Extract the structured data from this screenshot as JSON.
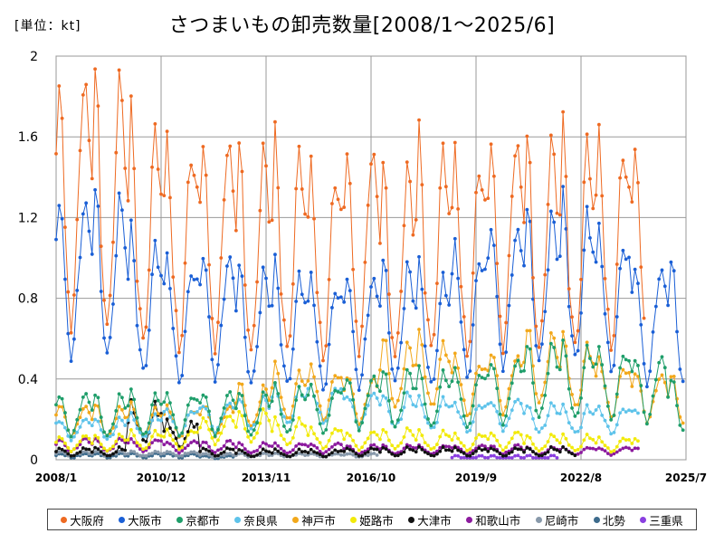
{
  "chart_data": {
    "type": "line",
    "title": "さつまいもの卸売数量[2008/1～2025/6]",
    "unit_label": "[単位：kt]",
    "ylim": [
      0,
      2
    ],
    "y_ticks": [
      "0",
      "0.4",
      "0.8",
      "1.2",
      "1.6",
      "2"
    ],
    "x_ticks": [
      "2008/1",
      "2010/12",
      "2013/11",
      "2016/10",
      "2019/9",
      "2022/8",
      "2025/7"
    ],
    "grid": true,
    "legend_position": "bottom",
    "series": [
      {
        "name": "大阪府",
        "color": "#ee6a22",
        "start": "2008/1",
        "end": "2024/5",
        "profile": [
          1.45,
          1.9,
          1.62,
          1.05,
          0.82,
          0.64,
          0.76,
          1.1,
          1.55,
          1.8,
          1.7,
          1.5
        ],
        "peaks": [
          1.97,
          1.94,
          1.7,
          1.62,
          1.65,
          1.58,
          1.58,
          1.49,
          1.61,
          1.49,
          1.59,
          1.55,
          1.66,
          1.63
        ]
      },
      {
        "name": "大阪市",
        "color": "#1a5fd6",
        "start": "2008/1",
        "end": "2025/6",
        "profile": [
          1.05,
          1.3,
          1.15,
          0.82,
          0.62,
          0.5,
          0.56,
          0.78,
          1.02,
          1.22,
          1.17,
          1.08
        ],
        "peaks": [
          1.34,
          1.34,
          1.12,
          1.02,
          1.06,
          0.97,
          0.96,
          0.92,
          0.95,
          1.0,
          0.95,
          1.08,
          1.21,
          1.26,
          1.28,
          1.15,
          1.0,
          1.0
        ]
      },
      {
        "name": "京都市",
        "color": "#1e9e6a",
        "start": "2008/1",
        "end": "2025/6",
        "profile": [
          0.27,
          0.33,
          0.3,
          0.22,
          0.15,
          0.12,
          0.14,
          0.19,
          0.26,
          0.32,
          0.31,
          0.28
        ],
        "peaks": [
          0.33,
          0.32,
          0.33,
          0.33,
          0.34,
          0.33,
          0.36,
          0.37,
          0.42,
          0.44,
          0.44,
          0.45,
          0.5,
          0.57,
          0.56,
          0.55,
          0.52,
          0.4
        ]
      },
      {
        "name": "奈良県",
        "color": "#5ec3ea",
        "start": "2008/1",
        "end": "2024/3",
        "profile": [
          0.18,
          0.2,
          0.18,
          0.15,
          0.12,
          0.1,
          0.11,
          0.13,
          0.17,
          0.2,
          0.19,
          0.18
        ],
        "peaks": [
          0.2,
          0.2,
          0.22,
          0.25,
          0.28,
          0.3,
          0.35,
          0.37,
          0.33,
          0.32,
          0.3,
          0.28,
          0.3,
          0.27,
          0.26,
          0.26,
          0.26
        ]
      },
      {
        "name": "神戸市",
        "color": "#f2a81b",
        "start": "2008/1",
        "end": "2025/6",
        "profile": [
          0.22,
          0.28,
          0.26,
          0.2,
          0.15,
          0.12,
          0.13,
          0.17,
          0.22,
          0.26,
          0.25,
          0.23
        ],
        "peaks": [
          0.28,
          0.27,
          0.27,
          0.27,
          0.28,
          0.38,
          0.46,
          0.47,
          0.43,
          0.6,
          0.61,
          0.52,
          0.55,
          0.65,
          0.6,
          0.5,
          0.45,
          0.42
        ]
      },
      {
        "name": "姫路市",
        "color": "#f2ea0a",
        "start": "2008/1",
        "end": "2024/3",
        "profile": [
          0.1,
          0.14,
          0.12,
          0.09,
          0.07,
          0.05,
          0.06,
          0.08,
          0.11,
          0.14,
          0.13,
          0.12
        ],
        "peaks": [
          0.12,
          0.12,
          0.14,
          0.15,
          0.22,
          0.24,
          0.2,
          0.16,
          0.14,
          0.15,
          0.14,
          0.13,
          0.14,
          0.12,
          0.12,
          0.11,
          0.11
        ]
      },
      {
        "name": "大津市",
        "color": "#111111",
        "start": "2008/1",
        "end": "2022/6",
        "profile": [
          0.04,
          0.06,
          0.05,
          0.04,
          0.03,
          0.02,
          0.02,
          0.03,
          0.04,
          0.06,
          0.05,
          0.05
        ],
        "peaks": [
          0.06,
          0.06,
          0.28,
          0.2,
          0.06,
          0.05,
          0.05,
          0.05,
          0.06,
          0.06,
          0.06,
          0.06,
          0.06,
          0.06,
          0.06
        ]
      },
      {
        "name": "和歌山市",
        "color": "#8c1a9e",
        "start": "2008/1",
        "end": "2024/3",
        "profile": [
          0.08,
          0.1,
          0.09,
          0.07,
          0.05,
          0.04,
          0.05,
          0.06,
          0.08,
          0.1,
          0.1,
          0.09
        ],
        "peaks": [
          0.1,
          0.1,
          0.1,
          0.09,
          0.09,
          0.08,
          0.08,
          0.08,
          0.07,
          0.07,
          0.07,
          0.07,
          0.07,
          0.06,
          0.06,
          0.06,
          0.06
        ]
      },
      {
        "name": "尼崎市",
        "color": "#8899aa",
        "start": "2008/1",
        "end": "2016/12",
        "profile": [
          0.03,
          0.04,
          0.04,
          0.03,
          0.02,
          0.02,
          0.02,
          0.03,
          0.03,
          0.04,
          0.04,
          0.03
        ],
        "peaks": [
          0.04,
          0.04,
          0.04,
          0.04,
          0.03,
          0.03,
          0.03,
          0.03,
          0.03
        ]
      },
      {
        "name": "北勢",
        "color": "#3d6b8c",
        "start": "2008/1",
        "end": "2012/12",
        "profile": [
          0.02,
          0.03,
          0.03,
          0.02,
          0.02,
          0.01,
          0.01,
          0.02,
          0.02,
          0.03,
          0.03,
          0.02
        ],
        "peaks": [
          0.03,
          0.03,
          0.03,
          0.03,
          0.02
        ]
      },
      {
        "name": "三重県",
        "color": "#8a3fe0",
        "start": "2019/1",
        "end": "2021/12",
        "profile": [
          0.01,
          0.02,
          0.02,
          0.01,
          0.01,
          0.01,
          0.01,
          0.01,
          0.01,
          0.02,
          0.02,
          0.01
        ],
        "peaks": [
          0.02,
          0.02,
          0.02
        ]
      }
    ]
  }
}
